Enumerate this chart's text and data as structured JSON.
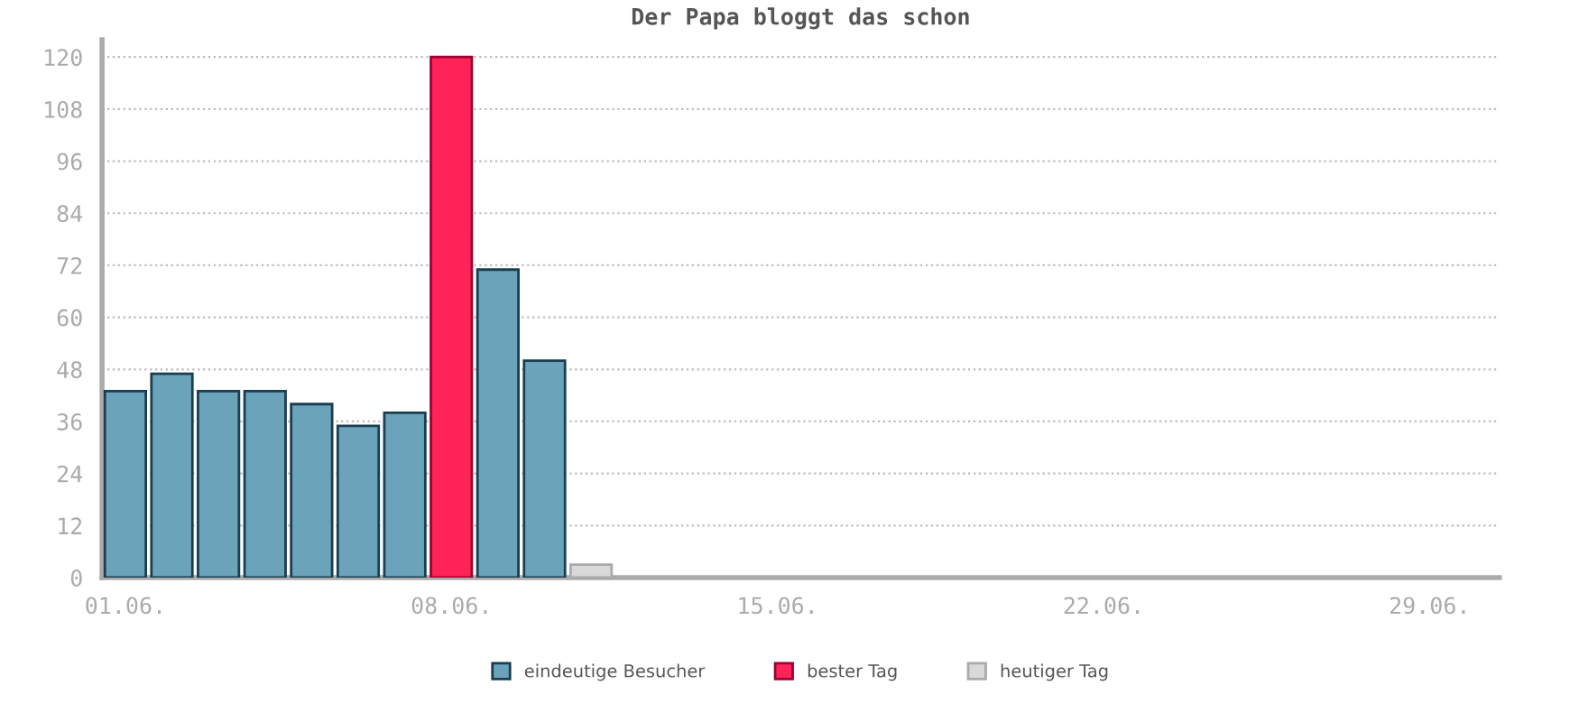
{
  "chart_data": {
    "type": "bar",
    "title": "Der Papa bloggt das schon",
    "categories": [
      "01.06.",
      null,
      null,
      null,
      null,
      null,
      null,
      "08.06.",
      null,
      null,
      null,
      null,
      null,
      null,
      "15.06.",
      null,
      null,
      null,
      null,
      null,
      null,
      "22.06.",
      null,
      null,
      null,
      null,
      null,
      null,
      "29.06.",
      null
    ],
    "series": [
      {
        "name": "eindeutige Besucher",
        "color": "#6ba3ba",
        "values": [
          43,
          47,
          43,
          43,
          40,
          35,
          38,
          null,
          71,
          50,
          null,
          null,
          null,
          null,
          null,
          null,
          null,
          null,
          null,
          null,
          null,
          null,
          null,
          null,
          null,
          null,
          null,
          null,
          null,
          null
        ]
      },
      {
        "name": "bester Tag",
        "color": "#ff2358",
        "values": [
          null,
          null,
          null,
          null,
          null,
          null,
          null,
          120,
          null,
          null,
          null,
          null,
          null,
          null,
          null,
          null,
          null,
          null,
          null,
          null,
          null,
          null,
          null,
          null,
          null,
          null,
          null,
          null,
          null,
          null
        ]
      },
      {
        "name": "heutiger Tag",
        "color": "#d9d9d9",
        "values": [
          null,
          null,
          null,
          null,
          null,
          null,
          null,
          null,
          null,
          null,
          3,
          null,
          null,
          null,
          null,
          null,
          null,
          null,
          null,
          null,
          null,
          null,
          null,
          null,
          null,
          null,
          null,
          null,
          null,
          null
        ]
      }
    ],
    "ylim": [
      0,
      124
    ],
    "yticks": [
      0,
      12,
      24,
      36,
      48,
      60,
      72,
      84,
      96,
      108,
      120
    ],
    "grid": "y",
    "legend": "bottom"
  }
}
